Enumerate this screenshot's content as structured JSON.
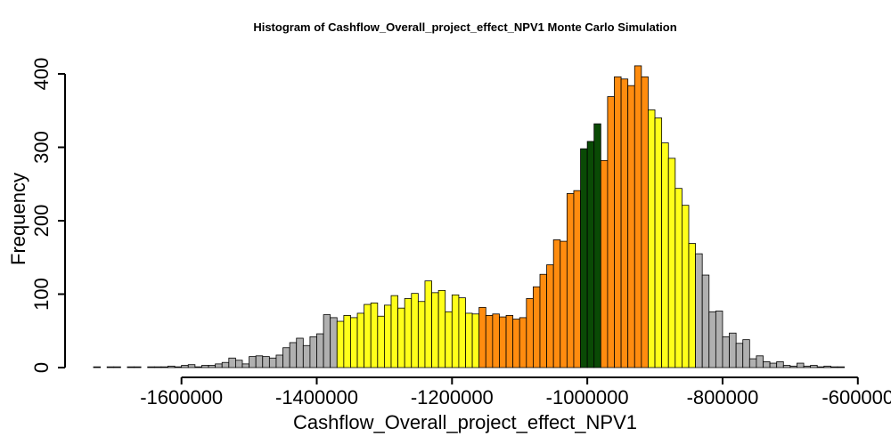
{
  "chart_data": {
    "type": "bar",
    "title": "Histogram of  Cashflow_Overall_project_effect_NPV1  Monte Carlo Simulation",
    "xlabel": "Cashflow_Overall_project_effect_NPV1",
    "ylabel": "Frequency",
    "xlim": [
      -1730000,
      -630000
    ],
    "ylim": [
      0,
      400
    ],
    "x_ticks": [
      -1600000,
      -1400000,
      -1200000,
      -1000000,
      -800000,
      -600000
    ],
    "x_tick_labels": [
      "-1600000",
      "-1400000",
      "-1200000",
      "-1000000",
      "-800000",
      "-600000"
    ],
    "y_ticks": [
      0,
      100,
      200,
      300,
      400
    ],
    "y_tick_labels": [
      "0",
      "100",
      "200",
      "300",
      "400"
    ],
    "bin_start": -1730000,
    "bin_width": 10000,
    "colors": {
      "gray": "#b0b0b0",
      "yellow": "#ffff1a",
      "orange": "#ff8c0f",
      "green": "#0a4a05"
    },
    "bins": [
      {
        "count": 1,
        "color": "gray"
      },
      {
        "count": 0,
        "color": "gray"
      },
      {
        "count": 1,
        "color": "gray"
      },
      {
        "count": 1,
        "color": "gray"
      },
      {
        "count": 0,
        "color": "gray"
      },
      {
        "count": 1,
        "color": "gray"
      },
      {
        "count": 1,
        "color": "gray"
      },
      {
        "count": 0,
        "color": "gray"
      },
      {
        "count": 1,
        "color": "gray"
      },
      {
        "count": 1,
        "color": "gray"
      },
      {
        "count": 1,
        "color": "gray"
      },
      {
        "count": 2,
        "color": "gray"
      },
      {
        "count": 1,
        "color": "gray"
      },
      {
        "count": 3,
        "color": "gray"
      },
      {
        "count": 4,
        "color": "gray"
      },
      {
        "count": 1,
        "color": "gray"
      },
      {
        "count": 3,
        "color": "gray"
      },
      {
        "count": 3,
        "color": "gray"
      },
      {
        "count": 5,
        "color": "gray"
      },
      {
        "count": 7,
        "color": "gray"
      },
      {
        "count": 13,
        "color": "gray"
      },
      {
        "count": 10,
        "color": "gray"
      },
      {
        "count": 5,
        "color": "gray"
      },
      {
        "count": 15,
        "color": "gray"
      },
      {
        "count": 16,
        "color": "gray"
      },
      {
        "count": 15,
        "color": "gray"
      },
      {
        "count": 13,
        "color": "gray"
      },
      {
        "count": 17,
        "color": "gray"
      },
      {
        "count": 27,
        "color": "gray"
      },
      {
        "count": 34,
        "color": "gray"
      },
      {
        "count": 40,
        "color": "gray"
      },
      {
        "count": 30,
        "color": "gray"
      },
      {
        "count": 42,
        "color": "gray"
      },
      {
        "count": 46,
        "color": "gray"
      },
      {
        "count": 72,
        "color": "gray"
      },
      {
        "count": 68,
        "color": "gray"
      },
      {
        "count": 63,
        "color": "yellow"
      },
      {
        "count": 71,
        "color": "yellow"
      },
      {
        "count": 68,
        "color": "yellow"
      },
      {
        "count": 74,
        "color": "yellow"
      },
      {
        "count": 86,
        "color": "yellow"
      },
      {
        "count": 88,
        "color": "yellow"
      },
      {
        "count": 70,
        "color": "yellow"
      },
      {
        "count": 85,
        "color": "yellow"
      },
      {
        "count": 98,
        "color": "yellow"
      },
      {
        "count": 81,
        "color": "yellow"
      },
      {
        "count": 94,
        "color": "yellow"
      },
      {
        "count": 101,
        "color": "yellow"
      },
      {
        "count": 90,
        "color": "yellow"
      },
      {
        "count": 118,
        "color": "yellow"
      },
      {
        "count": 102,
        "color": "yellow"
      },
      {
        "count": 105,
        "color": "yellow"
      },
      {
        "count": 76,
        "color": "yellow"
      },
      {
        "count": 99,
        "color": "yellow"
      },
      {
        "count": 95,
        "color": "yellow"
      },
      {
        "count": 74,
        "color": "yellow"
      },
      {
        "count": 73,
        "color": "yellow"
      },
      {
        "count": 82,
        "color": "orange"
      },
      {
        "count": 71,
        "color": "orange"
      },
      {
        "count": 73,
        "color": "orange"
      },
      {
        "count": 69,
        "color": "orange"
      },
      {
        "count": 71,
        "color": "orange"
      },
      {
        "count": 66,
        "color": "orange"
      },
      {
        "count": 68,
        "color": "orange"
      },
      {
        "count": 94,
        "color": "orange"
      },
      {
        "count": 110,
        "color": "orange"
      },
      {
        "count": 127,
        "color": "orange"
      },
      {
        "count": 140,
        "color": "orange"
      },
      {
        "count": 174,
        "color": "orange"
      },
      {
        "count": 172,
        "color": "orange"
      },
      {
        "count": 237,
        "color": "orange"
      },
      {
        "count": 241,
        "color": "orange"
      },
      {
        "count": 298,
        "color": "green"
      },
      {
        "count": 308,
        "color": "green"
      },
      {
        "count": 332,
        "color": "green"
      },
      {
        "count": 282,
        "color": "orange"
      },
      {
        "count": 369,
        "color": "orange"
      },
      {
        "count": 396,
        "color": "orange"
      },
      {
        "count": 393,
        "color": "orange"
      },
      {
        "count": 384,
        "color": "orange"
      },
      {
        "count": 411,
        "color": "orange"
      },
      {
        "count": 396,
        "color": "orange"
      },
      {
        "count": 351,
        "color": "yellow"
      },
      {
        "count": 340,
        "color": "yellow"
      },
      {
        "count": 306,
        "color": "yellow"
      },
      {
        "count": 285,
        "color": "yellow"
      },
      {
        "count": 244,
        "color": "yellow"
      },
      {
        "count": 221,
        "color": "yellow"
      },
      {
        "count": 169,
        "color": "yellow"
      },
      {
        "count": 155,
        "color": "gray"
      },
      {
        "count": 126,
        "color": "gray"
      },
      {
        "count": 76,
        "color": "gray"
      },
      {
        "count": 77,
        "color": "gray"
      },
      {
        "count": 42,
        "color": "gray"
      },
      {
        "count": 47,
        "color": "gray"
      },
      {
        "count": 33,
        "color": "gray"
      },
      {
        "count": 38,
        "color": "gray"
      },
      {
        "count": 12,
        "color": "gray"
      },
      {
        "count": 16,
        "color": "gray"
      },
      {
        "count": 8,
        "color": "gray"
      },
      {
        "count": 6,
        "color": "gray"
      },
      {
        "count": 8,
        "color": "gray"
      },
      {
        "count": 3,
        "color": "gray"
      },
      {
        "count": 2,
        "color": "gray"
      },
      {
        "count": 6,
        "color": "gray"
      },
      {
        "count": 2,
        "color": "gray"
      },
      {
        "count": 3,
        "color": "gray"
      },
      {
        "count": 1,
        "color": "gray"
      },
      {
        "count": 2,
        "color": "gray"
      },
      {
        "count": 1,
        "color": "gray"
      },
      {
        "count": 1,
        "color": "gray"
      }
    ]
  }
}
